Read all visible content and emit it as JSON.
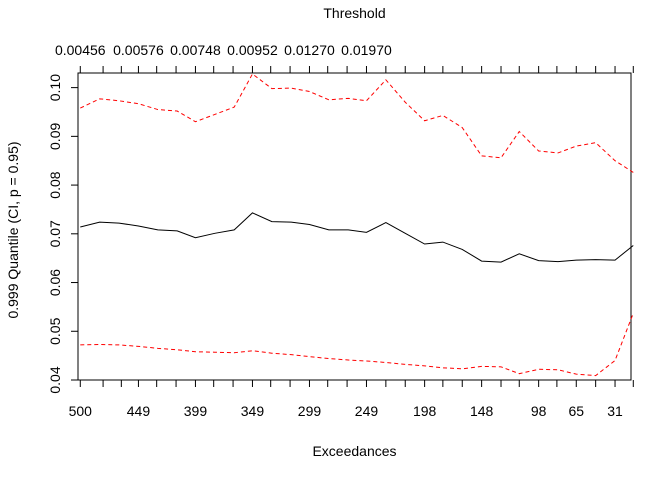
{
  "chart_data": {
    "type": "line",
    "title": "",
    "xlabel": "Exceedances",
    "ylabel": "0.999 Quantile (CI, p = 0.95)",
    "top_axis_label": "Threshold",
    "x_reversed": true,
    "xlim": [
      502,
      17
    ],
    "ylim": [
      0.04,
      0.103
    ],
    "grid": false,
    "legend": "none",
    "x_ticks": [
      500,
      480,
      464,
      449,
      433,
      416,
      399,
      383,
      366,
      349,
      333,
      316,
      299,
      283,
      266,
      249,
      232,
      215,
      198,
      182,
      165,
      148,
      131,
      115,
      98,
      82,
      65,
      48,
      31,
      15
    ],
    "x_tick_labels": [
      "500",
      "",
      "",
      "449",
      "",
      "",
      "399",
      "",
      "",
      "349",
      "",
      "",
      "299",
      "",
      "",
      "249",
      "",
      "",
      "198",
      "",
      "",
      "148",
      "",
      "",
      "98",
      "",
      "65",
      "",
      "31",
      ""
    ],
    "top_tick_labels": [
      "0.00456",
      "",
      "",
      "0.00576",
      "",
      "",
      "0.00748",
      "",
      "",
      "0.00952",
      "",
      "",
      "0.01270",
      "",
      "",
      "0.01970",
      "",
      "",
      "",
      "",
      "",
      "",
      "",
      "",
      "",
      "",
      "",
      "",
      "",
      ""
    ],
    "y_ticks": [
      0.04,
      0.05,
      0.06,
      0.07,
      0.08,
      0.09,
      0.1
    ],
    "y_tick_labels": [
      "0.04",
      "0.05",
      "0.06",
      "0.07",
      "0.08",
      "0.09",
      "0.10"
    ],
    "x": [
      500,
      483,
      466,
      449,
      432,
      415,
      399,
      382,
      365,
      349,
      332,
      315,
      299,
      282,
      265,
      249,
      232,
      215,
      198,
      182,
      165,
      148,
      131,
      115,
      98,
      81,
      65,
      48,
      31,
      15
    ],
    "series": [
      {
        "style": "solid",
        "color": "#000000",
        "values": [
          0.0714,
          0.0724,
          0.0722,
          0.0716,
          0.0708,
          0.0706,
          0.0692,
          0.0701,
          0.0708,
          0.0743,
          0.0725,
          0.0724,
          0.0719,
          0.0708,
          0.0708,
          0.0703,
          0.0723,
          0.0701,
          0.0679,
          0.0683,
          0.0668,
          0.0644,
          0.0642,
          0.0659,
          0.0645,
          0.0643,
          0.0646,
          0.0647,
          0.0646,
          0.0676
        ]
      },
      {
        "style": "dashed",
        "color": "#ff0000",
        "values": [
          0.0958,
          0.0977,
          0.0973,
          0.0967,
          0.0955,
          0.0952,
          0.093,
          0.0945,
          0.096,
          0.1028,
          0.0998,
          0.0999,
          0.0992,
          0.0975,
          0.0978,
          0.0973,
          0.1016,
          0.097,
          0.0932,
          0.0943,
          0.0918,
          0.086,
          0.0856,
          0.091,
          0.087,
          0.0866,
          0.088,
          0.0887,
          0.085,
          0.0826
        ]
      },
      {
        "style": "dashed",
        "color": "#ff0000",
        "values": [
          0.0472,
          0.0473,
          0.0472,
          0.0469,
          0.0465,
          0.0462,
          0.0458,
          0.0457,
          0.0456,
          0.046,
          0.0455,
          0.0452,
          0.0448,
          0.0444,
          0.0441,
          0.0439,
          0.0436,
          0.0432,
          0.0429,
          0.0425,
          0.0423,
          0.0428,
          0.0427,
          0.0413,
          0.0422,
          0.0421,
          0.0412,
          0.0409,
          0.044,
          0.0537
        ]
      }
    ]
  }
}
